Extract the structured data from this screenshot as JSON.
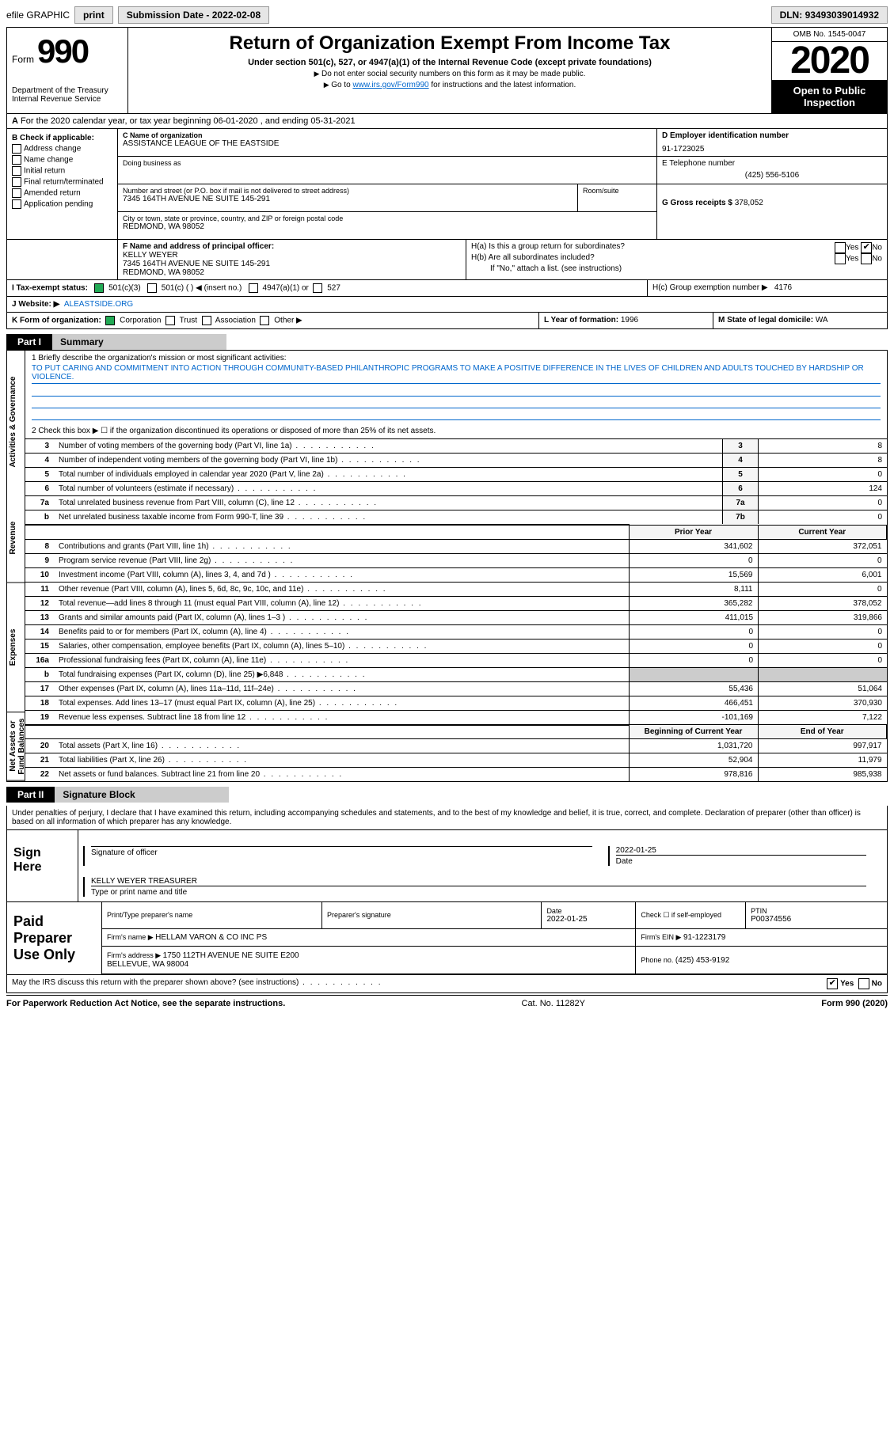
{
  "topbar": {
    "efile": "efile GRAPHIC",
    "print": "print",
    "submission_label": "Submission Date - ",
    "submission_date": "2022-02-08",
    "dln_label": "DLN: ",
    "dln": "93493039014932"
  },
  "header": {
    "form_word": "Form",
    "form_num": "990",
    "dept": "Department of the Treasury\nInternal Revenue Service",
    "title": "Return of Organization Exempt From Income Tax",
    "subtitle": "Under section 501(c), 527, or 4947(a)(1) of the Internal Revenue Code (except private foundations)",
    "note1": "Do not enter social security numbers on this form as it may be made public.",
    "note2_pre": "Go to ",
    "note2_link": "www.irs.gov/Form990",
    "note2_post": " for instructions and the latest information.",
    "omb": "OMB No. 1545-0047",
    "year": "2020",
    "open": "Open to Public Inspection"
  },
  "row_a": {
    "text": "For the 2020 calendar year, or tax year beginning 06-01-2020    , and ending 05-31-2021",
    "prefix": "A"
  },
  "col_b": {
    "title": "B Check if applicable:",
    "items": [
      "Address change",
      "Name change",
      "Initial return",
      "Final return/terminated",
      "Amended return",
      "Application pending"
    ]
  },
  "col_c": {
    "name_label": "C Name of organization",
    "name": "ASSISTANCE LEAGUE OF THE EASTSIDE",
    "dba_label": "Doing business as",
    "dba": "",
    "street_label": "Number and street (or P.O. box if mail is not delivered to street address)",
    "street": "7345 164TH AVENUE NE SUITE 145-291",
    "room_label": "Room/suite",
    "city_label": "City or town, state or province, country, and ZIP or foreign postal code",
    "city": "REDMOND, WA  98052"
  },
  "col_d": {
    "ein_label": "D Employer identification number",
    "ein": "91-1723025",
    "phone_label": "E Telephone number",
    "phone": "(425) 556-5106",
    "gross_label": "G Gross receipts $ ",
    "gross": "378,052"
  },
  "row_f": {
    "label": "F Name and address of principal officer:",
    "name": "KELLY WEYER",
    "addr1": "7345 164TH AVENUE NE SUITE 145-291",
    "addr2": "REDMOND, WA  98052"
  },
  "row_h": {
    "ha": "H(a)  Is this a group return for subordinates?",
    "hb": "H(b)  Are all subordinates included?",
    "hb_note": "If \"No,\" attach a list. (see instructions)",
    "hc": "H(c)  Group exemption number ▶",
    "hc_val": "4176",
    "yes": "Yes",
    "no": "No"
  },
  "row_i": {
    "label": "I   Tax-exempt status:",
    "opts": [
      "501(c)(3)",
      "501(c) (  ) ◀ (insert no.)",
      "4947(a)(1) or",
      "527"
    ]
  },
  "row_j": {
    "label": "J   Website: ▶",
    "val": "ALEASTSIDE.ORG"
  },
  "row_k": {
    "label": "K Form of organization:",
    "opts": [
      "Corporation",
      "Trust",
      "Association",
      "Other ▶"
    ]
  },
  "row_l": {
    "label": "L Year of formation: ",
    "val": "1996"
  },
  "row_m": {
    "label": "M State of legal domicile: ",
    "val": "WA"
  },
  "part1": {
    "tab": "Part I",
    "title": "Summary",
    "sections": {
      "gov": "Activities & Governance",
      "rev": "Revenue",
      "exp": "Expenses",
      "net": "Net Assets or Fund Balances"
    },
    "q1_label": "1   Briefly describe the organization's mission or most significant activities:",
    "q1_mission": "TO PUT CARING AND COMMITMENT INTO ACTION THROUGH COMMUNITY-BASED PHILANTHROPIC PROGRAMS TO MAKE A POSITIVE DIFFERENCE IN THE LIVES OF CHILDREN AND ADULTS TOUCHED BY HARDSHIP OR VIOLENCE.",
    "q2": "2   Check this box ▶ ☐  if the organization discontinued its operations or disposed of more than 25% of its net assets.",
    "gov_rows": [
      {
        "n": "3",
        "d": "Number of voting members of the governing body (Part VI, line 1a)",
        "c": "3",
        "v": "8"
      },
      {
        "n": "4",
        "d": "Number of independent voting members of the governing body (Part VI, line 1b)",
        "c": "4",
        "v": "8"
      },
      {
        "n": "5",
        "d": "Total number of individuals employed in calendar year 2020 (Part V, line 2a)",
        "c": "5",
        "v": "0"
      },
      {
        "n": "6",
        "d": "Total number of volunteers (estimate if necessary)",
        "c": "6",
        "v": "124"
      },
      {
        "n": "7a",
        "d": "Total unrelated business revenue from Part VIII, column (C), line 12",
        "c": "7a",
        "v": "0"
      },
      {
        "n": "b",
        "d": "Net unrelated business taxable income from Form 990-T, line 39",
        "c": "7b",
        "v": "0"
      }
    ],
    "col_prior": "Prior Year",
    "col_current": "Current Year",
    "rev_rows": [
      {
        "n": "8",
        "d": "Contributions and grants (Part VIII, line 1h)",
        "p": "341,602",
        "c": "372,051"
      },
      {
        "n": "9",
        "d": "Program service revenue (Part VIII, line 2g)",
        "p": "0",
        "c": "0"
      },
      {
        "n": "10",
        "d": "Investment income (Part VIII, column (A), lines 3, 4, and 7d )",
        "p": "15,569",
        "c": "6,001"
      },
      {
        "n": "11",
        "d": "Other revenue (Part VIII, column (A), lines 5, 6d, 8c, 9c, 10c, and 11e)",
        "p": "8,111",
        "c": "0"
      },
      {
        "n": "12",
        "d": "Total revenue—add lines 8 through 11 (must equal Part VIII, column (A), line 12)",
        "p": "365,282",
        "c": "378,052"
      }
    ],
    "exp_rows": [
      {
        "n": "13",
        "d": "Grants and similar amounts paid (Part IX, column (A), lines 1–3 )",
        "p": "411,015",
        "c": "319,866"
      },
      {
        "n": "14",
        "d": "Benefits paid to or for members (Part IX, column (A), line 4)",
        "p": "0",
        "c": "0"
      },
      {
        "n": "15",
        "d": "Salaries, other compensation, employee benefits (Part IX, column (A), lines 5–10)",
        "p": "0",
        "c": "0"
      },
      {
        "n": "16a",
        "d": "Professional fundraising fees (Part IX, column (A), line 11e)",
        "p": "0",
        "c": "0"
      },
      {
        "n": "b",
        "d": "Total fundraising expenses (Part IX, column (D), line 25) ▶6,848",
        "p": "SHADE",
        "c": "SHADE"
      },
      {
        "n": "17",
        "d": "Other expenses (Part IX, column (A), lines 11a–11d, 11f–24e)",
        "p": "55,436",
        "c": "51,064"
      },
      {
        "n": "18",
        "d": "Total expenses. Add lines 13–17 (must equal Part IX, column (A), line 25)",
        "p": "466,451",
        "c": "370,930"
      },
      {
        "n": "19",
        "d": "Revenue less expenses. Subtract line 18 from line 12",
        "p": "-101,169",
        "c": "7,122"
      }
    ],
    "col_begin": "Beginning of Current Year",
    "col_end": "End of Year",
    "net_rows": [
      {
        "n": "20",
        "d": "Total assets (Part X, line 16)",
        "p": "1,031,720",
        "c": "997,917"
      },
      {
        "n": "21",
        "d": "Total liabilities (Part X, line 26)",
        "p": "52,904",
        "c": "11,979"
      },
      {
        "n": "22",
        "d": "Net assets or fund balances. Subtract line 21 from line 20",
        "p": "978,816",
        "c": "985,938"
      }
    ]
  },
  "part2": {
    "tab": "Part II",
    "title": "Signature Block",
    "decl": "Under penalties of perjury, I declare that I have examined this return, including accompanying schedules and statements, and to the best of my knowledge and belief, it is true, correct, and complete. Declaration of preparer (other than officer) is based on all information of which preparer has any knowledge.",
    "sign_here": "Sign Here",
    "sig_officer": "Signature of officer",
    "sig_date": "Date",
    "sig_date_val": "2022-01-25",
    "sig_name": "KELLY WEYER  TREASURER",
    "sig_name_label": "Type or print name and title",
    "paid": "Paid Preparer Use Only",
    "prep_name_label": "Print/Type preparer's name",
    "prep_name": "",
    "prep_sig_label": "Preparer's signature",
    "prep_date_label": "Date",
    "prep_date": "2022-01-25",
    "prep_check_label": "Check ☐ if self-employed",
    "ptin_label": "PTIN",
    "ptin": "P00374556",
    "firm_name_label": "Firm's name     ▶ ",
    "firm_name": "HELLAM VARON & CO INC PS",
    "firm_ein_label": "Firm's EIN ▶ ",
    "firm_ein": "91-1223179",
    "firm_addr_label": "Firm's address ▶ ",
    "firm_addr": "1750 112TH AVENUE NE SUITE E200\nBELLEVUE, WA  98004",
    "firm_phone_label": "Phone no. ",
    "firm_phone": "(425) 453-9192",
    "discuss": "May the IRS discuss this return with the preparer shown above? (see instructions)",
    "yes": "Yes",
    "no": "No"
  },
  "footer": {
    "left": "For Paperwork Reduction Act Notice, see the separate instructions.",
    "center": "Cat. No. 11282Y",
    "right": "Form 990 (2020)"
  }
}
